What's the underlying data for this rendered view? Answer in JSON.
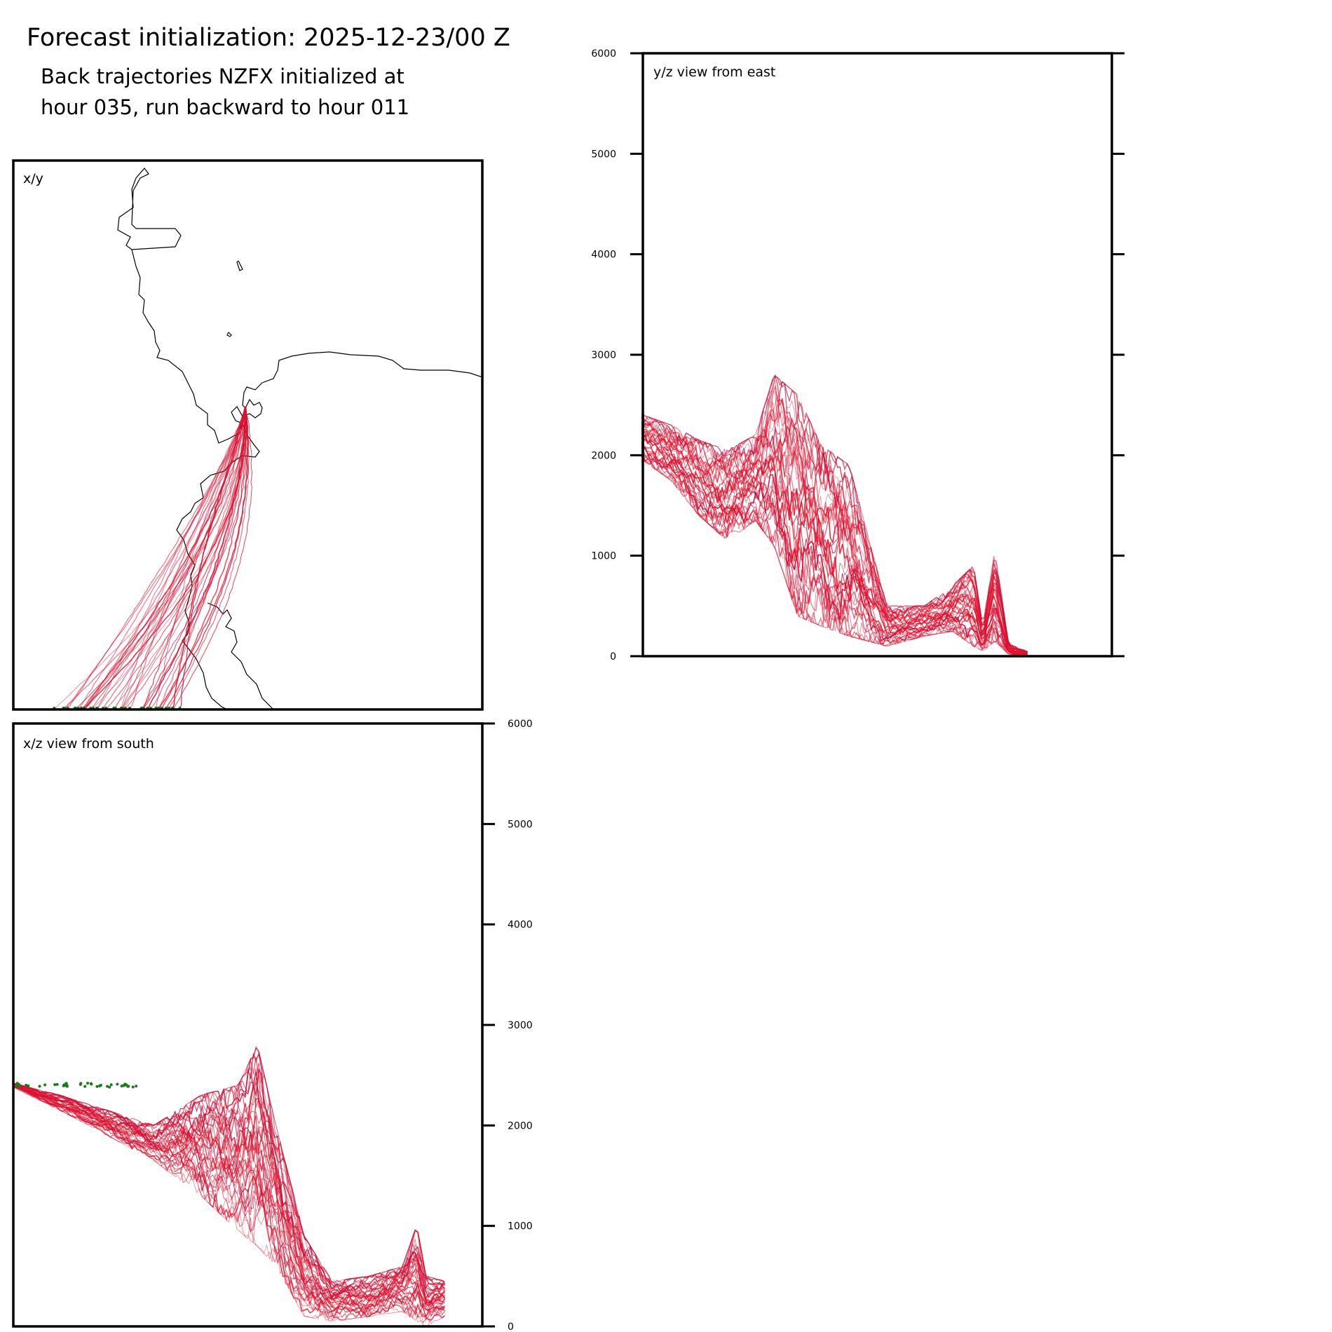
{
  "header": {
    "title": "Forecast initialization: 2025-12-23/00 Z",
    "subtitle_line1": "Back trajectories NZFX initialized at",
    "subtitle_line2": "hour 035, run backward to hour 011"
  },
  "panels": {
    "xy": {
      "label": "x/y"
    },
    "yz": {
      "label": "y/z view from east"
    },
    "xz": {
      "label": "x/z view from south"
    }
  },
  "colors": {
    "trajectory": "#e8102a",
    "trajectory_alt": "#c8103a",
    "start_marker": "#1a7a1a",
    "coastline": "#000000"
  },
  "chart_data": [
    {
      "type": "line",
      "name": "x/y",
      "series_count": 40,
      "xlabel": "",
      "ylabel": "",
      "grid": false
    },
    {
      "type": "line",
      "name": "y/z view from east",
      "ylim": [
        0,
        6000
      ],
      "yticks": [
        "0",
        "1000",
        "2000",
        "3000",
        "4000",
        "5000",
        "6000"
      ],
      "y_axis_side": "left",
      "series_count": 40,
      "start_heights_range": [
        1950,
        2400
      ],
      "envelope": [
        {
          "pos": 0.0,
          "low": 1950,
          "high": 2400
        },
        {
          "pos": 0.06,
          "low": 1750,
          "high": 2300
        },
        {
          "pos": 0.12,
          "low": 1400,
          "high": 2150
        },
        {
          "pos": 0.18,
          "low": 1150,
          "high": 2050
        },
        {
          "pos": 0.24,
          "low": 1350,
          "high": 2200
        },
        {
          "pos": 0.28,
          "low": 1100,
          "high": 2800
        },
        {
          "pos": 0.33,
          "low": 400,
          "high": 2600
        },
        {
          "pos": 0.38,
          "low": 300,
          "high": 2100
        },
        {
          "pos": 0.44,
          "low": 200,
          "high": 1900
        },
        {
          "pos": 0.52,
          "low": 100,
          "high": 500
        },
        {
          "pos": 0.6,
          "low": 200,
          "high": 500
        },
        {
          "pos": 0.66,
          "low": 250,
          "high": 700
        },
        {
          "pos": 0.705,
          "low": 100,
          "high": 900
        },
        {
          "pos": 0.725,
          "low": 50,
          "high": 300
        },
        {
          "pos": 0.75,
          "low": 150,
          "high": 1050
        },
        {
          "pos": 0.78,
          "low": 20,
          "high": 120
        },
        {
          "pos": 0.82,
          "low": 0,
          "high": 50
        }
      ]
    },
    {
      "type": "line",
      "name": "x/z view from south",
      "ylim": [
        0,
        6000
      ],
      "yticks": [
        "0",
        "1000",
        "2000",
        "3000",
        "4000",
        "5000",
        "6000"
      ],
      "y_axis_side": "right",
      "series_count": 40,
      "start_heights_range": [
        1950,
        2400
      ],
      "envelope": [
        {
          "pos": 0.0,
          "low": 2380,
          "high": 2420
        },
        {
          "pos": 0.1,
          "low": 2150,
          "high": 2300
        },
        {
          "pos": 0.2,
          "low": 1900,
          "high": 2150
        },
        {
          "pos": 0.3,
          "low": 1650,
          "high": 2000
        },
        {
          "pos": 0.4,
          "low": 1300,
          "high": 2300
        },
        {
          "pos": 0.48,
          "low": 950,
          "high": 2400
        },
        {
          "pos": 0.52,
          "low": 800,
          "high": 2800
        },
        {
          "pos": 0.56,
          "low": 600,
          "high": 2000
        },
        {
          "pos": 0.62,
          "low": 100,
          "high": 900
        },
        {
          "pos": 0.68,
          "low": 50,
          "high": 450
        },
        {
          "pos": 0.76,
          "low": 100,
          "high": 500
        },
        {
          "pos": 0.83,
          "low": 150,
          "high": 600
        },
        {
          "pos": 0.86,
          "low": 50,
          "high": 1000
        },
        {
          "pos": 0.88,
          "low": 0,
          "high": 500
        },
        {
          "pos": 0.92,
          "low": 100,
          "high": 450
        }
      ]
    }
  ]
}
